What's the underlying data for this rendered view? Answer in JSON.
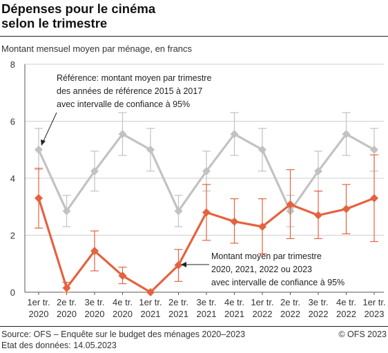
{
  "title_line1": "Dépenses pour le cinéma",
  "title_line2": "selon le trimestre",
  "subtitle": "Montant mensuel moyen par ménage, en francs",
  "source": "Source: OFS – Enquête sur le budget des ménages 2020–2023",
  "data_status": "Etat des données: 14.05.2023",
  "copyright": "© OFS 2023",
  "colors": {
    "reference": "#c2c2c2",
    "current": "#e5623f",
    "grid": "#cfcfcf",
    "axis": "#555555"
  },
  "chart_data": {
    "type": "line",
    "categories": [
      [
        "1er tr.",
        "2020"
      ],
      [
        "2e tr.",
        "2020"
      ],
      [
        "3e tr.",
        "2020"
      ],
      [
        "4e tr.",
        "2020"
      ],
      [
        "1er tr.",
        "2021"
      ],
      [
        "2e tr.",
        "2021"
      ],
      [
        "3e tr.",
        "2021"
      ],
      [
        "4e tr.",
        "2021"
      ],
      [
        "1er tr.",
        "2022"
      ],
      [
        "2e tr.",
        "2022"
      ],
      [
        "3e tr.",
        "2022"
      ],
      [
        "4e tr.",
        "2022"
      ],
      [
        "1er tr.",
        "2023"
      ]
    ],
    "ylim": [
      0,
      8
    ],
    "yticks": [
      "0",
      "2",
      "4",
      "6",
      "8"
    ],
    "grid": true,
    "series": [
      {
        "key": "reference",
        "values": [
          5.0,
          2.85,
          4.25,
          5.55,
          5.0,
          2.85,
          4.25,
          5.55,
          5.0,
          2.85,
          4.25,
          5.55,
          5.0
        ],
        "lower": [
          4.3,
          2.3,
          3.55,
          4.8,
          4.25,
          2.3,
          3.55,
          4.8,
          4.25,
          2.3,
          3.55,
          4.8,
          4.25
        ],
        "upper": [
          5.75,
          3.4,
          4.95,
          6.3,
          5.75,
          3.4,
          4.95,
          6.3,
          5.75,
          3.4,
          4.95,
          6.3,
          5.75
        ]
      },
      {
        "key": "current",
        "values": [
          3.3,
          0.15,
          1.45,
          0.58,
          0.0,
          0.95,
          2.8,
          2.48,
          2.3,
          3.08,
          2.7,
          2.92,
          3.3
        ],
        "lower": [
          2.25,
          0.0,
          0.75,
          0.3,
          0.0,
          0.38,
          1.82,
          1.72,
          1.35,
          1.88,
          1.88,
          2.05,
          1.78
        ],
        "upper": [
          4.35,
          0.35,
          2.15,
          0.88,
          0.0,
          1.5,
          3.78,
          3.28,
          3.28,
          4.3,
          3.55,
          3.78,
          4.82
        ]
      }
    ],
    "annotations": {
      "reference": [
        "Référence: montant moyen par trimestre",
        "des années de référence 2015 à 2017",
        "avec intervalle de confiance à 95%"
      ],
      "current": [
        "Montant moyen par trimestre",
        "2020, 2021, 2022 ou 2023",
        "avec intervalle de confiance à 95%"
      ]
    }
  }
}
